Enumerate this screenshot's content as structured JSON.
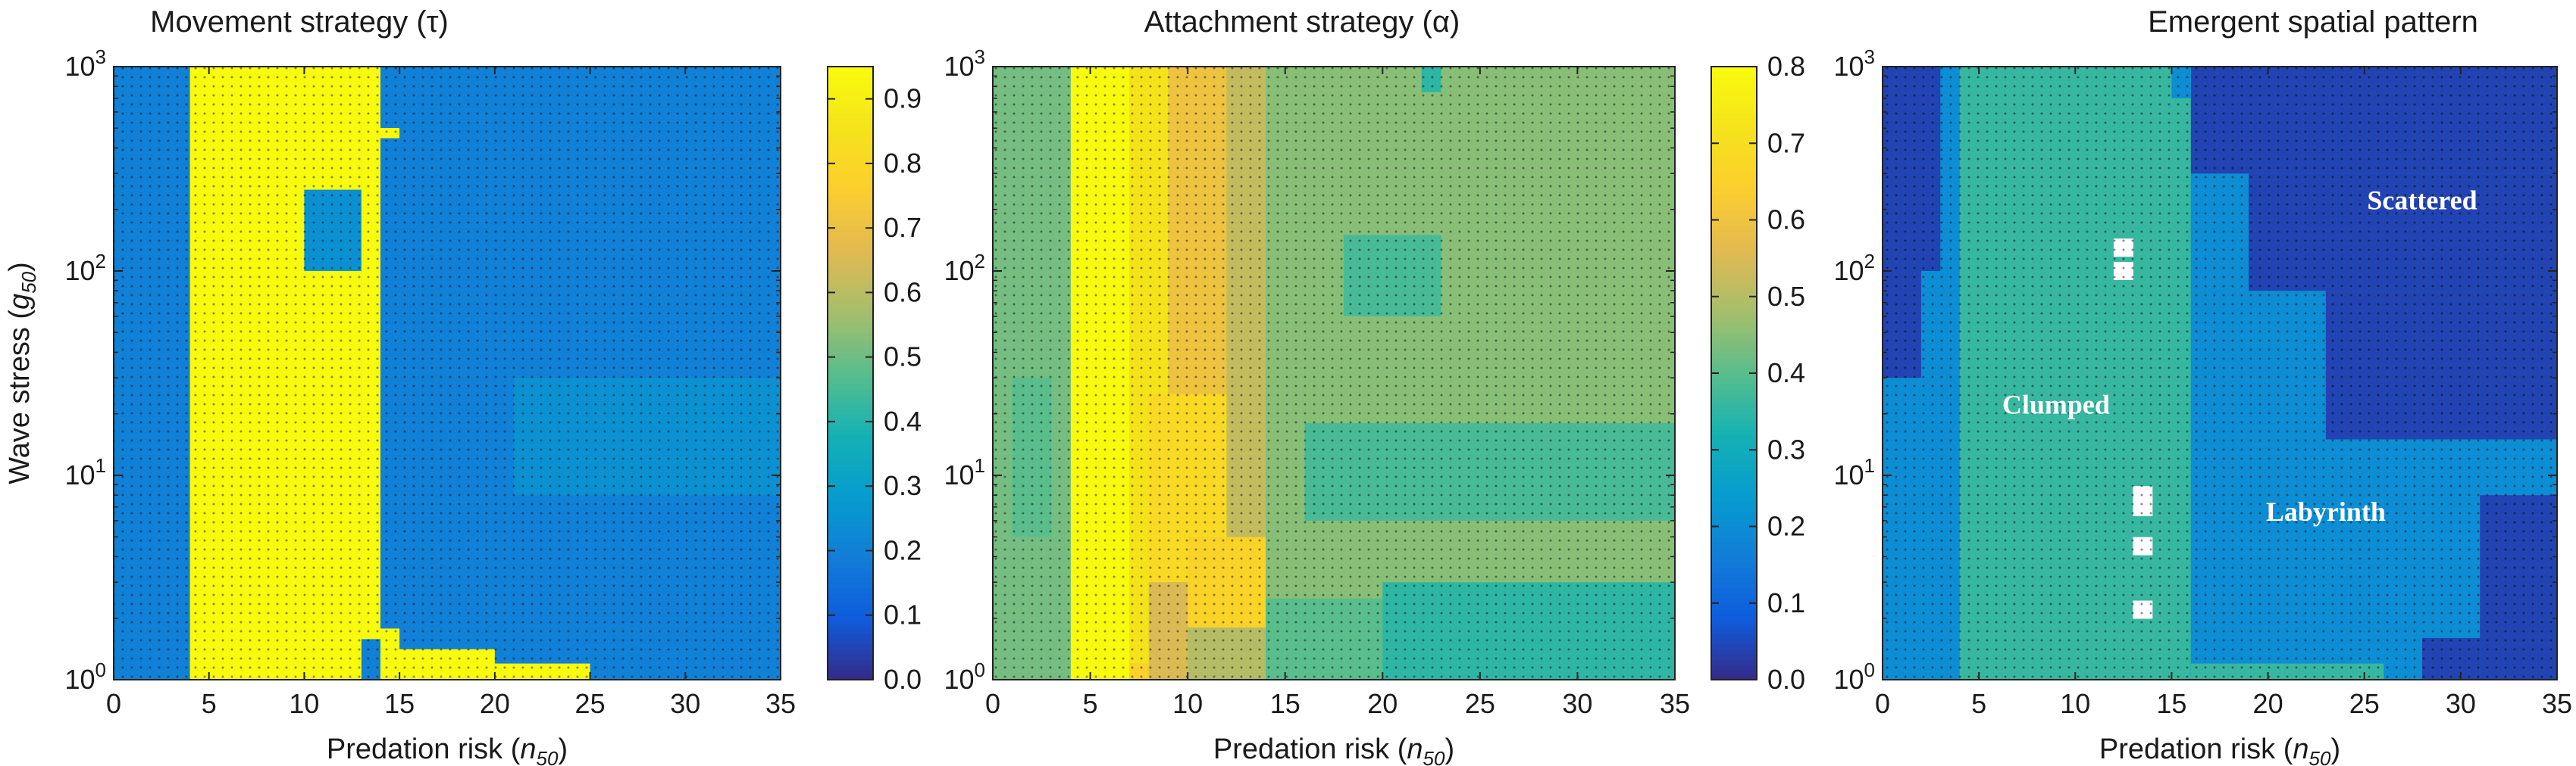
{
  "chart_data": [
    {
      "type": "heatmap",
      "title": "Movement strategy (τ)",
      "xlabel": "Predation risk (n50)",
      "xlabel_main": "Predation risk (",
      "xlabel_var": "n",
      "xlabel_sub": "50",
      "xlabel_close": ")",
      "ylabel": "Wave stress (g50)",
      "ylabel_main": "Wave stress (",
      "ylabel_var": "g",
      "ylabel_sub": "50",
      "ylabel_close": ")",
      "xlim": [
        0,
        35
      ],
      "ylim": [
        1,
        1000
      ],
      "yscale": "log",
      "x_ticks": [
        "0",
        "5",
        "10",
        "15",
        "20",
        "25",
        "30",
        "35"
      ],
      "x_tick_values": [
        0,
        5,
        10,
        15,
        20,
        25,
        30,
        35
      ],
      "y_ticks": [
        {
          "base": "10",
          "exp": "0",
          "value": 1
        },
        {
          "base": "10",
          "exp": "1",
          "value": 10
        },
        {
          "base": "10",
          "exp": "2",
          "value": 100
        },
        {
          "base": "10",
          "exp": "3",
          "value": 1000
        }
      ],
      "colormap": "parula",
      "colorbar": {
        "min": 0,
        "max": 0.95,
        "ticks": [
          "0.0",
          "0.1",
          "0.2",
          "0.3",
          "0.4",
          "0.5",
          "0.6",
          "0.7",
          "0.8",
          "0.9"
        ],
        "tick_values": [
          0,
          0.1,
          0.2,
          0.3,
          0.4,
          0.5,
          0.6,
          0.7,
          0.8,
          0.9
        ]
      },
      "background_value": 0.2,
      "regions": [
        {
          "x_range": [
            0,
            4
          ],
          "y_range": [
            1,
            1000
          ],
          "value": 0.2
        },
        {
          "x_range": [
            4,
            13
          ],
          "y_range": [
            1,
            1000
          ],
          "value": 0.95
        },
        {
          "x_range": [
            13,
            14
          ],
          "y_range": [
            1.58,
            1000
          ],
          "value": 0.95
        },
        {
          "x_range": [
            14,
            15
          ],
          "y_range": [
            1.41,
            1.78
          ],
          "value": 0.95
        },
        {
          "x_range": [
            14,
            20
          ],
          "y_range": [
            1,
            1.41
          ],
          "value": 0.95
        },
        {
          "x_range": [
            20,
            25
          ],
          "y_range": [
            1,
            1.2
          ],
          "value": 0.95
        },
        {
          "x_range": [
            14,
            15
          ],
          "y_range": [
            446,
            501
          ],
          "value": 0.95
        },
        {
          "x_range": [
            10,
            13
          ],
          "y_range": [
            100,
            250
          ],
          "value": 0.25
        },
        {
          "x_range": [
            12,
            13
          ],
          "y_range": [
            13,
            17.8
          ],
          "value": 0.95
        },
        {
          "x_range": [
            12,
            13
          ],
          "y_range": [
            10,
            11.2
          ],
          "value": 0.95
        },
        {
          "x_range": [
            21,
            35
          ],
          "y_range": [
            8,
            30
          ],
          "value": 0.25
        }
      ]
    },
    {
      "type": "heatmap",
      "title": "Attachment strategy (α)",
      "xlabel": "Predation risk (n50)",
      "xlabel_main": "Predation risk (",
      "xlabel_var": "n",
      "xlabel_sub": "50",
      "xlabel_close": ")",
      "xlim": [
        0,
        35
      ],
      "ylim": [
        1,
        1000
      ],
      "yscale": "log",
      "x_ticks": [
        "0",
        "5",
        "10",
        "15",
        "20",
        "25",
        "30",
        "35"
      ],
      "x_tick_values": [
        0,
        5,
        10,
        15,
        20,
        25,
        30,
        35
      ],
      "y_ticks": [
        {
          "base": "10",
          "exp": "0",
          "value": 1
        },
        {
          "base": "10",
          "exp": "1",
          "value": 10
        },
        {
          "base": "10",
          "exp": "2",
          "value": 100
        },
        {
          "base": "10",
          "exp": "3",
          "value": 1000
        }
      ],
      "colormap": "parula",
      "colorbar": {
        "min": 0,
        "max": 0.8,
        "ticks": [
          "0.0",
          "0.1",
          "0.2",
          "0.3",
          "0.4",
          "0.5",
          "0.6",
          "0.7",
          "0.8"
        ],
        "tick_values": [
          0,
          0.1,
          0.2,
          0.3,
          0.4,
          0.5,
          0.6,
          0.7,
          0.8
        ]
      },
      "background_value": 0.45,
      "regions": [
        {
          "x_range": [
            0,
            4
          ],
          "y_range": [
            1,
            1000
          ],
          "value": 0.43
        },
        {
          "x_range": [
            1,
            3
          ],
          "y_range": [
            5,
            30
          ],
          "value": 0.4
        },
        {
          "x_range": [
            4,
            7
          ],
          "y_range": [
            1,
            1000
          ],
          "value": 0.8
        },
        {
          "x_range": [
            7,
            9
          ],
          "y_range": [
            1.2,
            1000
          ],
          "value": 0.72
        },
        {
          "x_range": [
            7,
            9
          ],
          "y_range": [
            1,
            1.2
          ],
          "value": 0.65
        },
        {
          "x_range": [
            9,
            12
          ],
          "y_range": [
            25,
            1000
          ],
          "value": 0.6
        },
        {
          "x_range": [
            8,
            12
          ],
          "y_range": [
            3,
            25
          ],
          "value": 0.68
        },
        {
          "x_range": [
            10,
            14
          ],
          "y_range": [
            1.8,
            5
          ],
          "value": 0.66
        },
        {
          "x_range": [
            8,
            10
          ],
          "y_range": [
            1,
            3
          ],
          "value": 0.55
        },
        {
          "x_range": [
            10,
            14
          ],
          "y_range": [
            1,
            1.8
          ],
          "value": 0.5
        },
        {
          "x_range": [
            12,
            14
          ],
          "y_range": [
            5,
            1000
          ],
          "value": 0.52
        },
        {
          "x_range": [
            14,
            20
          ],
          "y_range": [
            1,
            2.5
          ],
          "value": 0.4
        },
        {
          "x_range": [
            20,
            35
          ],
          "y_range": [
            1,
            3
          ],
          "value": 0.35
        },
        {
          "x_range": [
            16,
            35
          ],
          "y_range": [
            6,
            18
          ],
          "value": 0.38
        },
        {
          "x_range": [
            18,
            23
          ],
          "y_range": [
            60,
            150
          ],
          "value": 0.38
        },
        {
          "x_range": [
            22,
            23
          ],
          "y_range": [
            750,
            1000
          ],
          "value": 0.35
        }
      ]
    },
    {
      "type": "heatmap",
      "title": "Emergent spatial pattern",
      "xlabel": "Predation risk (n50)",
      "xlabel_main": "Predation risk (",
      "xlabel_var": "n",
      "xlabel_sub": "50",
      "xlabel_close": ")",
      "xlim": [
        0,
        35
      ],
      "ylim": [
        1,
        1000
      ],
      "yscale": "log",
      "x_ticks": [
        "0",
        "5",
        "10",
        "15",
        "20",
        "25",
        "30",
        "35"
      ],
      "x_tick_values": [
        0,
        5,
        10,
        15,
        20,
        25,
        30,
        35
      ],
      "y_ticks": [
        {
          "base": "10",
          "exp": "0",
          "value": 1
        },
        {
          "base": "10",
          "exp": "1",
          "value": 10
        },
        {
          "base": "10",
          "exp": "2",
          "value": 100
        },
        {
          "base": "10",
          "exp": "3",
          "value": 1000
        }
      ],
      "colormap": "parula",
      "categorical_values": {
        "Scattered": 0.05,
        "Labyrinth": 0.25,
        "Clumped": 0.45
      },
      "background_value": 0.25,
      "regions": [
        {
          "x_range": [
            0,
            4
          ],
          "y_range": [
            1,
            1000
          ],
          "value": 0.25
        },
        {
          "x_range": [
            0,
            3
          ],
          "y_range": [
            100,
            1000
          ],
          "value": 0.05
        },
        {
          "x_range": [
            0,
            2
          ],
          "y_range": [
            30,
            100
          ],
          "value": 0.05
        },
        {
          "x_range": [
            4,
            16
          ],
          "y_range": [
            1,
            1000
          ],
          "value": 0.45
        },
        {
          "x_range": [
            16,
            26
          ],
          "y_range": [
            1,
            1.2
          ],
          "value": 0.45
        },
        {
          "x_range": [
            16,
            35
          ],
          "y_range": [
            300,
            1000
          ],
          "value": 0.05
        },
        {
          "x_range": [
            19,
            35
          ],
          "y_range": [
            80,
            300
          ],
          "value": 0.05
        },
        {
          "x_range": [
            23,
            35
          ],
          "y_range": [
            15,
            80
          ],
          "value": 0.05
        },
        {
          "x_range": [
            31,
            35
          ],
          "y_range": [
            1,
            8
          ],
          "value": 0.05
        },
        {
          "x_range": [
            28,
            31
          ],
          "y_range": [
            1,
            1.6
          ],
          "value": 0.05
        },
        {
          "x_range": [
            15,
            16
          ],
          "y_range": [
            700,
            1000
          ],
          "value": 0.25
        }
      ],
      "unclassified_points": [
        {
          "x": 12.5,
          "y": 130
        },
        {
          "x": 12.5,
          "y": 100
        },
        {
          "x": 13.5,
          "y": 8
        },
        {
          "x": 13.5,
          "y": 7
        },
        {
          "x": 13.5,
          "y": 4.5
        },
        {
          "x": 13.5,
          "y": 2.2
        }
      ],
      "annotations": [
        {
          "text": "Scattered",
          "x": 28,
          "y": 200
        },
        {
          "text": "Clumped",
          "x": 9,
          "y": 20
        },
        {
          "text": "Labyrinth",
          "x": 23,
          "y": 6
        }
      ]
    }
  ]
}
